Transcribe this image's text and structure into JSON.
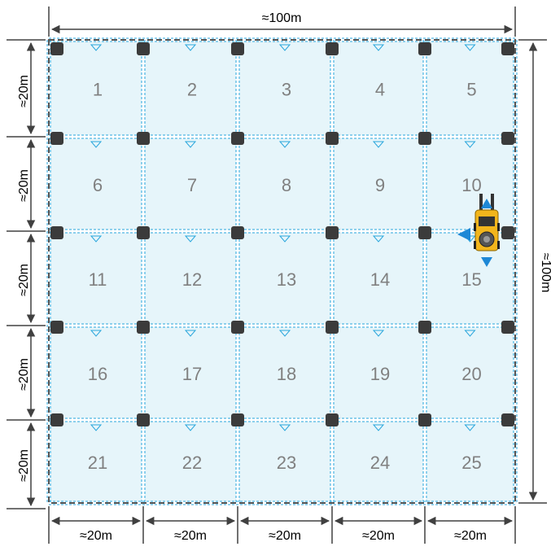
{
  "diagram": {
    "dimensions": {
      "top": "≈100m",
      "right": "≈100m",
      "left": [
        "≈20m",
        "≈20m",
        "≈20m",
        "≈20m",
        "≈20m"
      ],
      "bottom": [
        "≈20m",
        "≈20m",
        "≈20m",
        "≈20m",
        "≈20m"
      ]
    },
    "grid": {
      "rows": 5,
      "cols": 5,
      "cell_labels": [
        "1",
        "2",
        "3",
        "4",
        "5",
        "6",
        "7",
        "8",
        "9",
        "10",
        "11",
        "12",
        "13",
        "14",
        "15",
        "16",
        "17",
        "18",
        "19",
        "20",
        "21",
        "22",
        "23",
        "24",
        "25"
      ]
    },
    "colors": {
      "cell_fill": "#e6f5fa",
      "grid_line": "#29a6dc",
      "border_dash": "#555555",
      "post": "#3b3b3b",
      "cell_label": "#808080",
      "dimension": "#404040",
      "robot_body": "#f2b51c",
      "robot_arrow": "#1e88d6"
    },
    "robot": {
      "icon": "forklift-robot-icon",
      "arrows": [
        "up",
        "left",
        "down"
      ]
    }
  }
}
